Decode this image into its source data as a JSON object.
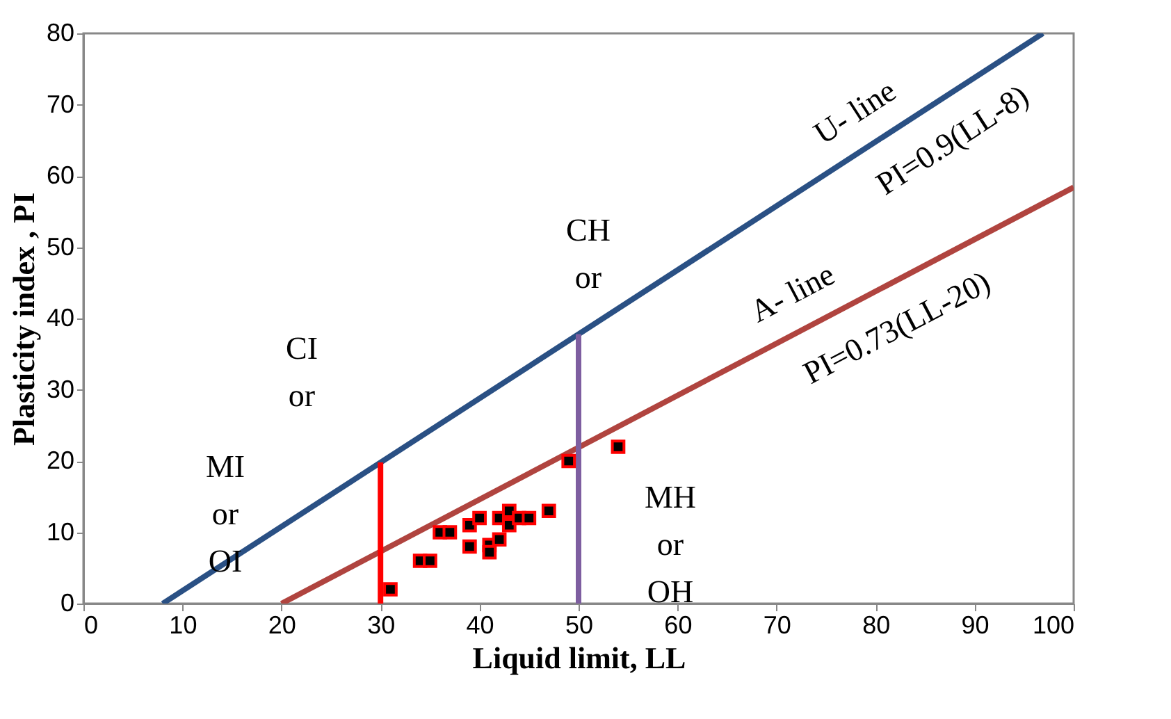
{
  "chart_data": {
    "type": "scatter",
    "xlabel": "Liquid limit, LL",
    "ylabel": "Plasticity index , PI",
    "xlim": [
      0,
      100
    ],
    "ylim": [
      0,
      80
    ],
    "xticks": [
      0,
      10,
      20,
      30,
      40,
      50,
      60,
      70,
      80,
      90,
      100
    ],
    "yticks": [
      0,
      10,
      20,
      30,
      40,
      50,
      60,
      70,
      80
    ],
    "grid": false,
    "series": [
      {
        "type": "line",
        "color": "#2a5084",
        "x": [
          8,
          96.9
        ],
        "values": [
          0,
          80
        ]
      },
      {
        "type": "line",
        "color": "#b0443f",
        "x": [
          20,
          100
        ],
        "values": [
          0,
          58.4
        ]
      },
      {
        "type": "line",
        "color": "#ff0000",
        "x": [
          30,
          30
        ],
        "values": [
          0,
          19.8
        ]
      },
      {
        "type": "line",
        "color": "#7e5ea0",
        "x": [
          50,
          50
        ],
        "values": [
          0,
          37.8
        ]
      },
      {
        "color": "#ff0000",
        "marker": "square",
        "x": [
          31,
          34,
          35,
          36,
          37,
          39,
          40,
          39,
          41,
          41,
          42,
          42,
          43,
          43,
          44,
          45,
          47,
          49,
          54
        ],
        "values": [
          2,
          6,
          6,
          10,
          10,
          11,
          12,
          8,
          8.2,
          7.2,
          9,
          12,
          13,
          11,
          12,
          12,
          13,
          20,
          22
        ]
      }
    ],
    "annotations": [
      "U- line",
      "PI=0.9(LL-8)",
      "A- line",
      "PI=0.73(LL-20)",
      "CH\nor",
      "CI\nor",
      "MI\nor\nOI",
      "MH\nor\nOH"
    ]
  }
}
